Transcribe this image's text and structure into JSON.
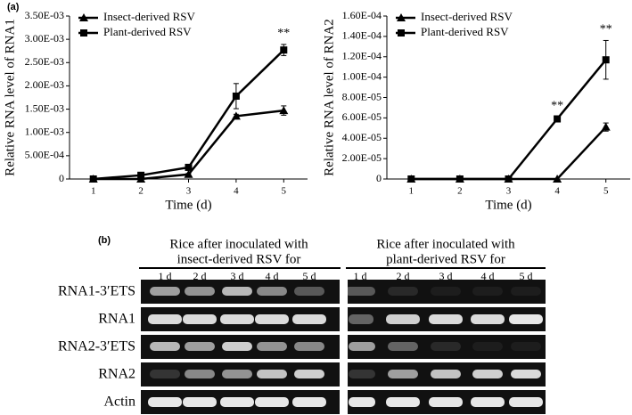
{
  "labels": [
    "(a)",
    "(b)"
  ],
  "chart_data": [
    {
      "type": "line",
      "ylabel": "Relative RNA level of RNA1",
      "xlabel": "Time (d)",
      "x": [
        1,
        2,
        3,
        4,
        5
      ],
      "xlim": [
        0.5,
        5.5
      ],
      "xticks": [
        1,
        2,
        3,
        4,
        5
      ],
      "ylim": [
        0,
        0.0035
      ],
      "yticks": [
        0,
        {
          "value": 0.0005,
          "label": "5.00E-04"
        },
        {
          "value": 0.001,
          "label": "1.00E-03"
        },
        {
          "value": 0.0015,
          "label": "1.50E-03"
        },
        {
          "value": 0.002,
          "label": "2.00E-03"
        },
        {
          "value": 0.0025,
          "label": "2.50E-03"
        },
        {
          "value": 0.003,
          "label": "3.00E-03"
        },
        {
          "value": 0.0035,
          "label": "3.50E-03"
        }
      ],
      "legend": "upper-left",
      "series": [
        {
          "name": "Insect-derived RSV",
          "color": "#000000",
          "marker": "triangle",
          "values": [
            0,
            0,
            0.0001,
            0.00135,
            0.00147
          ],
          "errors": [
            1e-05,
            1e-05,
            2e-05,
            4e-05,
            0.0001
          ]
        },
        {
          "name": "Plant-derived RSV",
          "color": "#000000",
          "marker": "square",
          "values": [
            0,
            8e-05,
            0.00025,
            0.00178,
            0.00277
          ],
          "errors": [
            1e-05,
            2e-05,
            3e-05,
            0.00027,
            0.00012
          ]
        }
      ],
      "annotations": [
        {
          "text": "**",
          "x": 5
        }
      ]
    },
    {
      "type": "line",
      "ylabel": "Relative RNA level of RNA2",
      "xlabel": "Time (d)",
      "x": [
        1,
        2,
        3,
        4,
        5
      ],
      "xlim": [
        0.5,
        5.5
      ],
      "xticks": [
        1,
        2,
        3,
        4,
        5
      ],
      "ylim": [
        0,
        0.00016
      ],
      "yticks": [
        0,
        {
          "value": 2e-05,
          "label": "2.00E-05"
        },
        {
          "value": 4e-05,
          "label": "4.00E-05"
        },
        {
          "value": 6e-05,
          "label": "6.00E-05"
        },
        {
          "value": 8e-05,
          "label": "8.00E-05"
        },
        {
          "value": 0.0001,
          "label": "1.00E-04"
        },
        {
          "value": 0.00012,
          "label": "1.20E-04"
        },
        {
          "value": 0.00014,
          "label": "1.40E-04"
        },
        {
          "value": 0.00016,
          "label": "1.60E-04"
        }
      ],
      "legend": "upper-left",
      "series": [
        {
          "name": "Insect-derived RSV",
          "color": "#000000",
          "marker": "triangle",
          "values": [
            0,
            0,
            0,
            0,
            5.1e-05
          ],
          "errors": [
            0,
            0,
            0,
            0,
            4e-06
          ]
        },
        {
          "name": "Plant-derived RSV",
          "color": "#000000",
          "marker": "square",
          "values": [
            0,
            0,
            0,
            5.9e-05,
            0.000117
          ],
          "errors": [
            0,
            0,
            0,
            2e-06,
            1.9e-05
          ]
        }
      ],
      "annotations": [
        {
          "text": "**",
          "x": 4
        },
        {
          "text": "**",
          "x": 5
        }
      ]
    }
  ],
  "gel": {
    "rows": [
      "RNA1-3′ETS",
      "RNA1",
      "RNA2-3′ETS",
      "RNA2",
      "Actin"
    ],
    "groups": [
      {
        "header": [
          "Rice after inoculated with",
          "insect-derived RSV for"
        ],
        "lanes": [
          "1 d",
          "2 d",
          "3 d",
          "4 d",
          "5 d"
        ]
      },
      {
        "header": [
          "Rice after inoculated with",
          "plant-derived RSV for"
        ],
        "lanes": [
          "1 d",
          "2 d",
          "3 d",
          "4 d",
          "5 d"
        ]
      }
    ]
  }
}
